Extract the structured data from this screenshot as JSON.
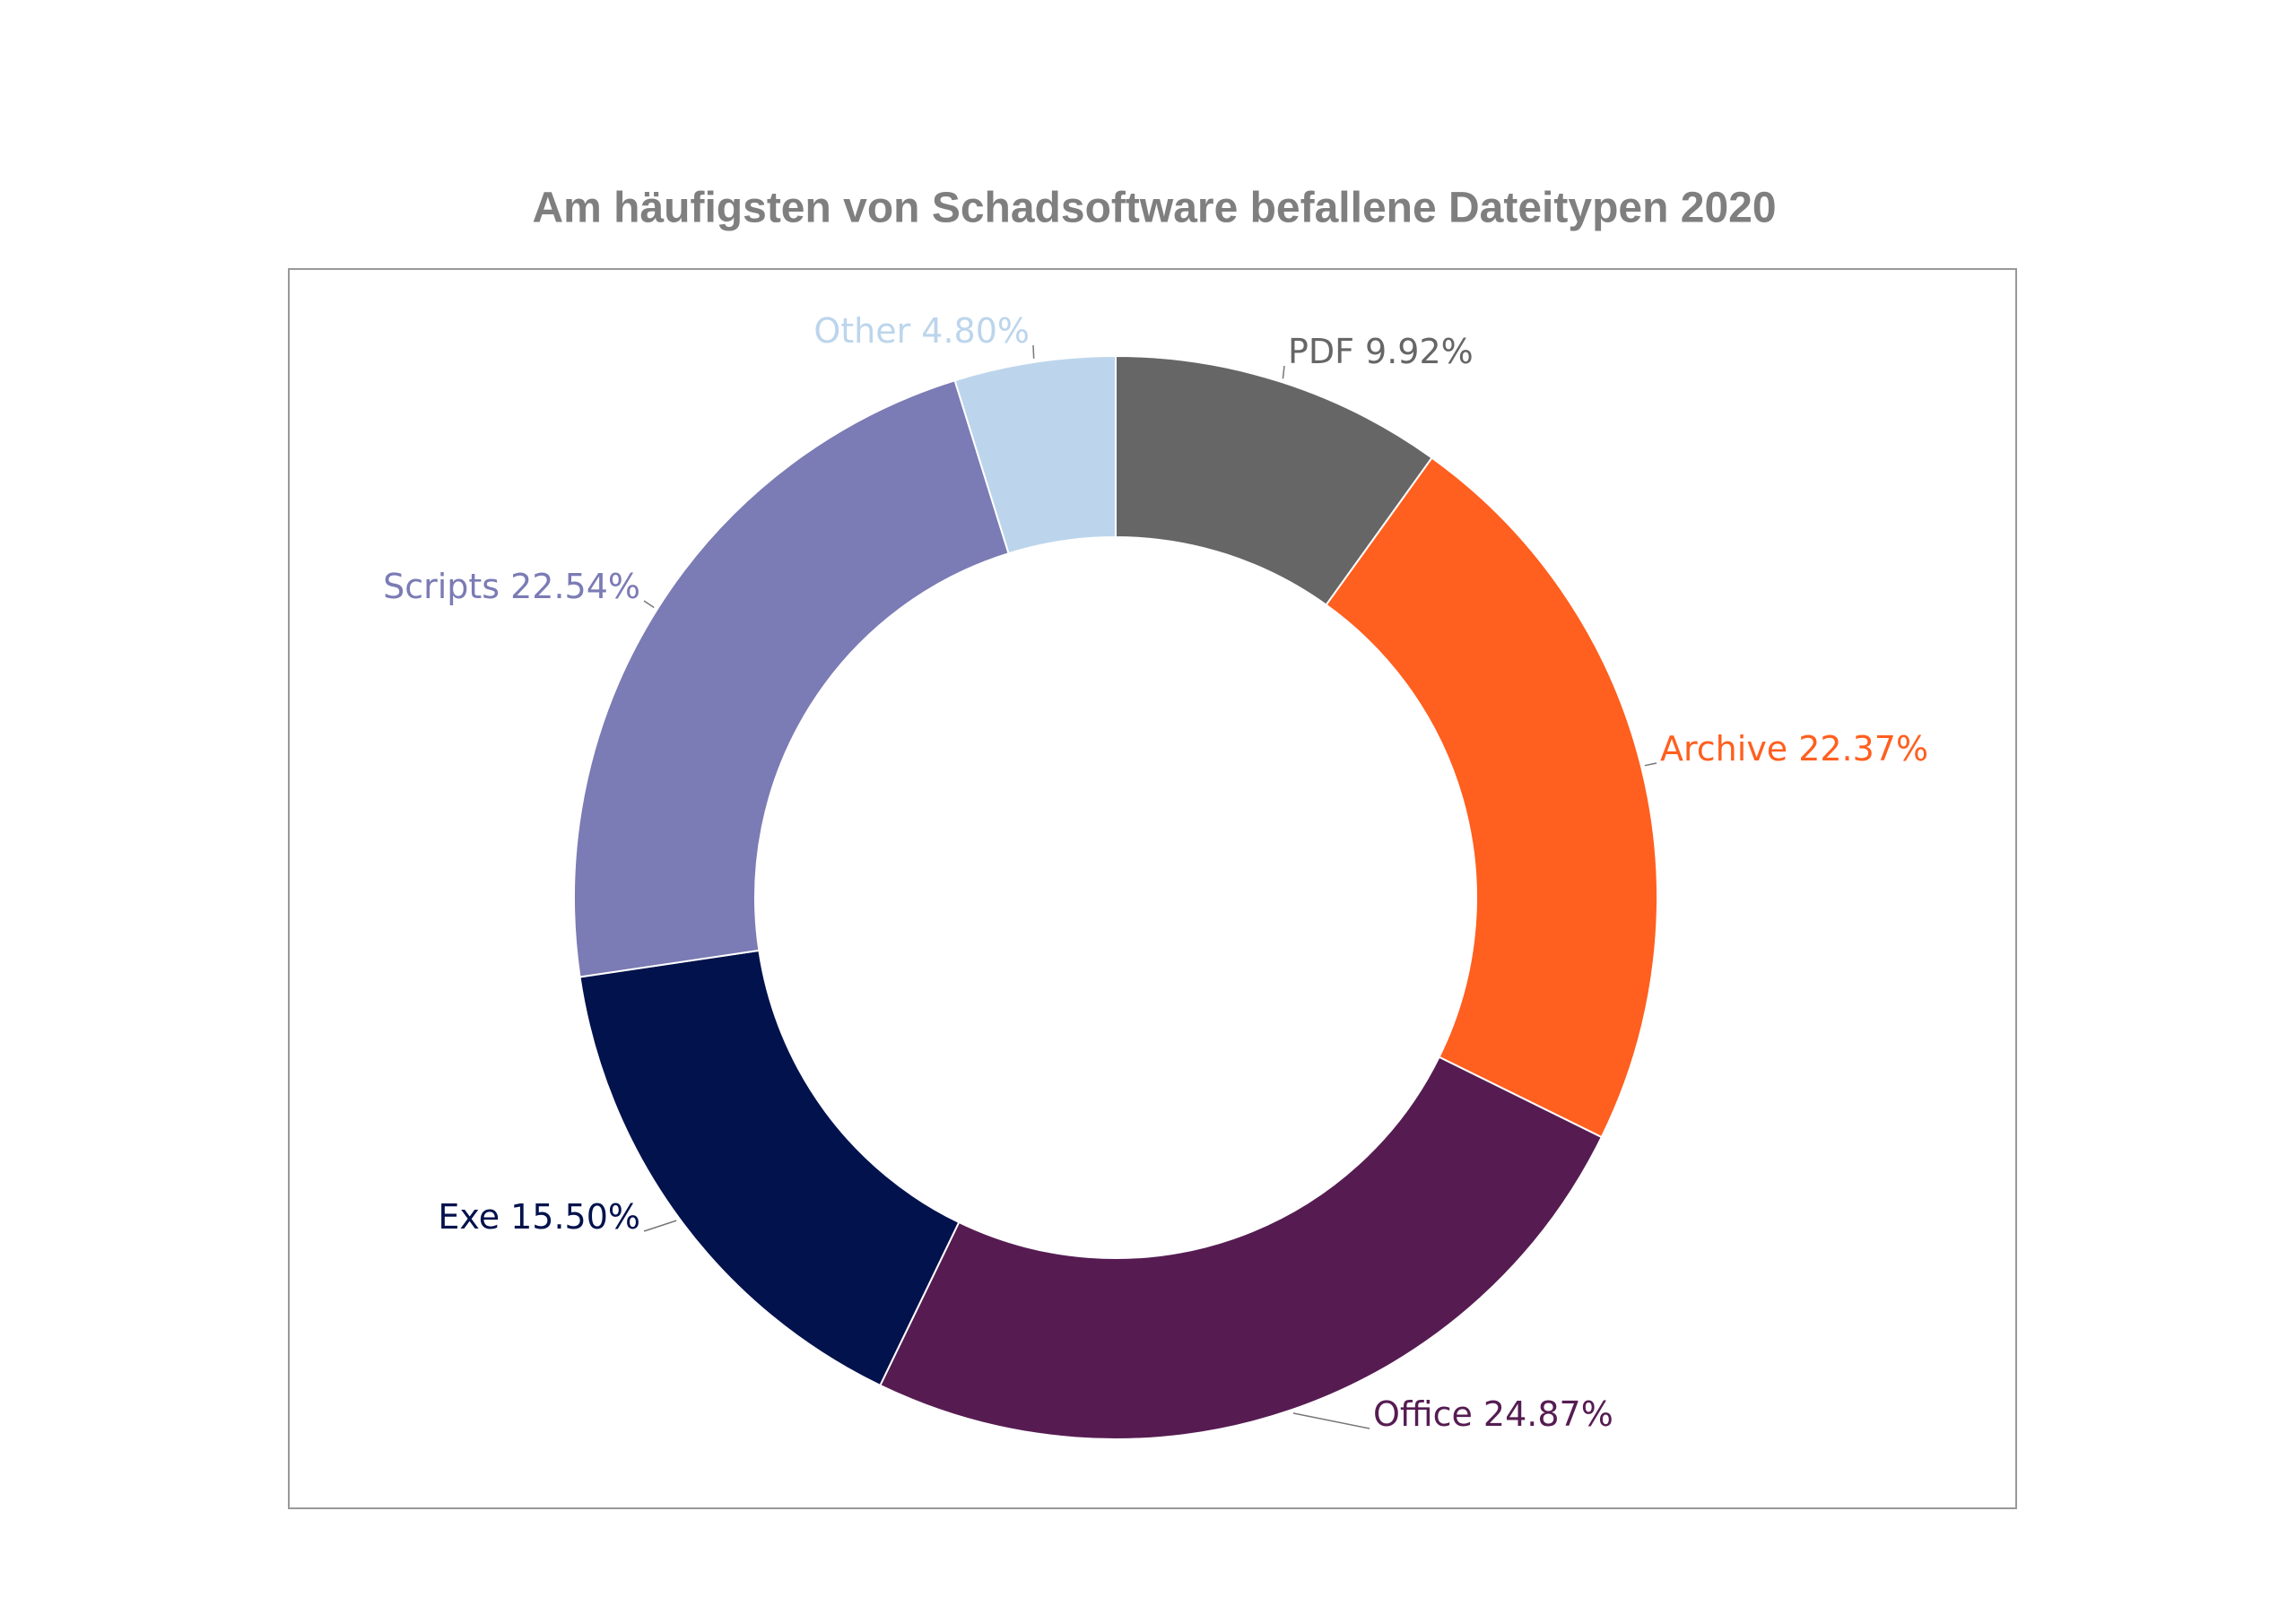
{
  "chart_data": {
    "type": "pie",
    "title": "Am häufigsten von Schadsoftware befallene Dateitypen 2020",
    "categories": [
      "PDF",
      "Archive",
      "Office",
      "Exe",
      "Scripts",
      "Other"
    ],
    "values": [
      9.92,
      22.37,
      24.87,
      15.5,
      22.54,
      4.8
    ],
    "value_labels": [
      "9.92%",
      "22.37%",
      "24.87%",
      "15.50%",
      "22.54%",
      "4.80%"
    ],
    "colors": [
      "#666666",
      "#ff5f1f",
      "#561c52",
      "#02124d",
      "#7b7bb5",
      "#bcd5ec"
    ],
    "donut": true
  }
}
